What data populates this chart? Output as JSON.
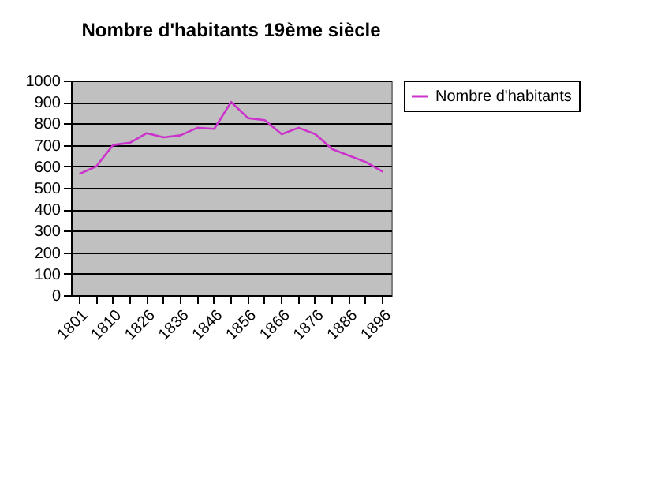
{
  "chart_data": {
    "type": "line",
    "title": "Nombre d'habitants 19ème siècle",
    "categories": [
      "1801",
      null,
      "1810",
      null,
      "1826",
      null,
      "1836",
      null,
      "1846",
      null,
      "1856",
      null,
      "1866",
      null,
      "1876",
      null,
      "1886",
      null,
      "1896"
    ],
    "series": [
      {
        "name": "Nombre d'habitants",
        "color": "#cc33cc",
        "values": [
          565,
          600,
          700,
          710,
          755,
          735,
          745,
          780,
          775,
          900,
          825,
          815,
          750,
          780,
          750,
          680,
          650,
          620,
          575
        ]
      }
    ],
    "ylim": [
      0,
      1000
    ],
    "yticks": [
      0,
      100,
      200,
      300,
      400,
      500,
      600,
      700,
      800,
      900,
      1000
    ],
    "grid": "y",
    "legend": "right",
    "marker": "none",
    "line_style": "solid"
  }
}
